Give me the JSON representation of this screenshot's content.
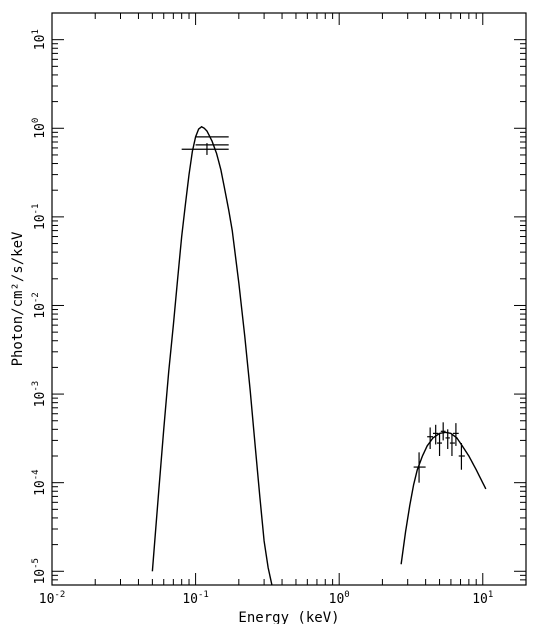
{
  "chart_data": {
    "type": "scatter",
    "title": "",
    "xlabel": "Energy (keV)",
    "ylabel": "Photon/cm²/s/keV",
    "xscale": "log",
    "yscale": "log",
    "xlim": [
      0.01,
      20
    ],
    "ylim": [
      7e-06,
      20
    ],
    "grid": false,
    "x_ticks": [
      {
        "base": "10",
        "exp": "-2"
      },
      {
        "base": "10",
        "exp": "-1"
      },
      {
        "base": "10",
        "exp": "0"
      },
      {
        "base": "10",
        "exp": "1"
      }
    ],
    "y_ticks": [
      {
        "base": "10",
        "exp": "-5"
      },
      {
        "base": "10",
        "exp": "-4"
      },
      {
        "base": "10",
        "exp": "-3"
      },
      {
        "base": "10",
        "exp": "-2"
      },
      {
        "base": "10",
        "exp": "-1"
      },
      {
        "base": "10",
        "exp": "0"
      },
      {
        "base": "10",
        "exp": "1"
      }
    ],
    "series": [
      {
        "kind": "model-curve",
        "x": [
          0.05,
          0.055,
          0.06,
          0.065,
          0.07,
          0.075,
          0.08,
          0.085,
          0.09,
          0.095,
          0.1,
          0.105,
          0.11,
          0.115,
          0.12,
          0.13,
          0.14,
          0.15,
          0.16,
          0.17,
          0.18,
          0.2,
          0.22,
          0.24,
          0.26,
          0.28,
          0.3,
          0.32,
          0.34
        ],
        "y": [
          1e-05,
          7e-05,
          0.0004,
          0.0018,
          0.006,
          0.02,
          0.06,
          0.14,
          0.3,
          0.55,
          0.8,
          0.98,
          1.04,
          1.0,
          0.93,
          0.72,
          0.52,
          0.34,
          0.2,
          0.12,
          0.07,
          0.018,
          0.0045,
          0.0011,
          0.00026,
          7e-05,
          2.2e-05,
          1.1e-05,
          7e-06
        ]
      },
      {
        "kind": "model-curve",
        "x": [
          2.7,
          2.9,
          3.1,
          3.3,
          3.5,
          3.8,
          4.1,
          4.5,
          5.0,
          5.5,
          6.0,
          6.6,
          7.2,
          8.0,
          9.0,
          10.5
        ],
        "y": [
          1.2e-05,
          2.8e-05,
          5.5e-05,
          9.5e-05,
          0.00014,
          0.0002,
          0.00026,
          0.00032,
          0.00036,
          0.00037,
          0.00036,
          0.00032,
          0.00026,
          0.0002,
          0.00014,
          8.5e-05
        ]
      },
      {
        "kind": "data-points",
        "points": [
          {
            "x": 0.11,
            "y": 0.8,
            "xlo": 0.1,
            "xhi": 0.17
          },
          {
            "x": 0.12,
            "y": 0.65,
            "xlo": 0.1,
            "xhi": 0.17
          },
          {
            "x": 0.12,
            "y": 0.58,
            "xlo": 0.08,
            "xhi": 0.17,
            "ylo": 0.5,
            "yhi": 0.68
          },
          {
            "x": 3.6,
            "y": 0.00015,
            "xlo": 3.3,
            "xhi": 4.0,
            "ylo": 0.0001,
            "yhi": 0.00022
          },
          {
            "x": 4.3,
            "y": 0.00033,
            "xlo": 4.1,
            "xhi": 4.5,
            "ylo": 0.00024,
            "yhi": 0.00042
          },
          {
            "x": 4.7,
            "y": 0.00036,
            "xlo": 4.5,
            "xhi": 4.9,
            "ylo": 0.00027,
            "yhi": 0.00045
          },
          {
            "x": 5.0,
            "y": 0.00028,
            "xlo": 4.8,
            "xhi": 5.2,
            "ylo": 0.0002,
            "yhi": 0.00036
          },
          {
            "x": 5.3,
            "y": 0.00038,
            "xlo": 5.1,
            "xhi": 5.5,
            "ylo": 0.0003,
            "yhi": 0.00048
          },
          {
            "x": 5.7,
            "y": 0.00032,
            "xlo": 5.5,
            "xhi": 5.9,
            "ylo": 0.00024,
            "yhi": 0.0004
          },
          {
            "x": 6.1,
            "y": 0.00028,
            "xlo": 5.9,
            "xhi": 6.4,
            "ylo": 0.0002,
            "yhi": 0.00036
          },
          {
            "x": 6.5,
            "y": 0.00036,
            "xlo": 6.2,
            "xhi": 6.8,
            "ylo": 0.00026,
            "yhi": 0.00047
          },
          {
            "x": 7.1,
            "y": 0.0002,
            "xlo": 6.8,
            "xhi": 7.5,
            "ylo": 0.00014,
            "yhi": 0.00028
          }
        ]
      }
    ]
  }
}
